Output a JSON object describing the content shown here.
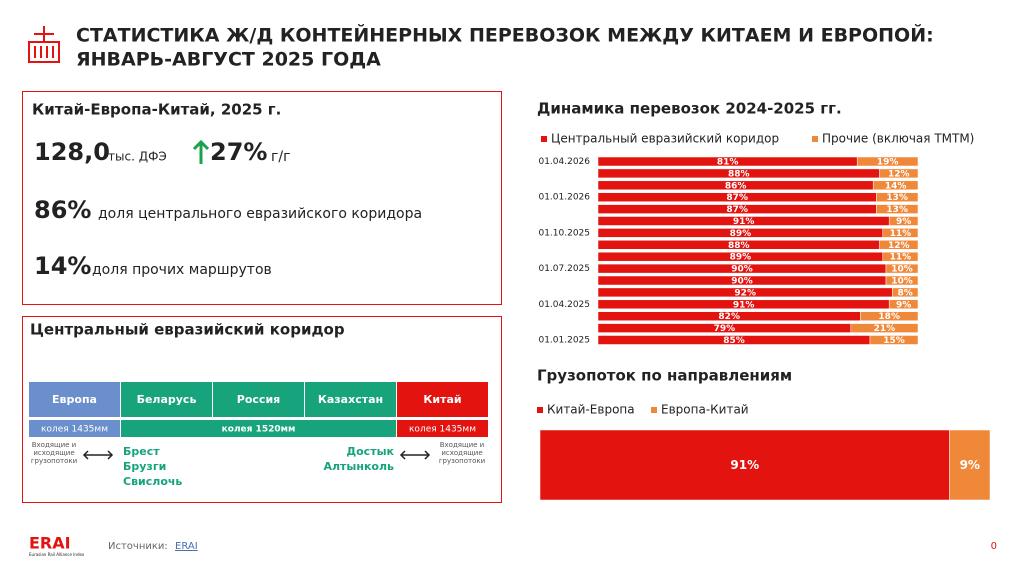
{
  "header": {
    "title_line1": "СТАТИСТИКА Ж/Д КОНТЕЙНЕРНЫХ ПЕРЕВОЗОК МЕЖДУ КИТАЕМ И ЕВРОПОЙ:",
    "title_line2": "ЯНВАРЬ-АВГУСТ 2025 ГОДА"
  },
  "summary": {
    "title": "Китай-Европа-Китай,  2025 г.",
    "volume": "128,0",
    "volume_unit": "тыс. ДФЭ",
    "growth": "27%",
    "growth_unit": "г/г",
    "share_central": "86%",
    "share_central_text": "доля центрального евразийского коридора",
    "share_other": "14%",
    "share_other_text": "доля прочих маршрутов"
  },
  "corridor": {
    "title": "Центральный евразийский коридор",
    "countries": [
      "Европа",
      "Беларусь",
      "Россия",
      "Казахстан",
      "Китай"
    ],
    "gauges": [
      "колея 1435мм",
      "колея 1520мм",
      "колея 1435мм"
    ],
    "flows_left": "Входящие и исходящие грузопотоки",
    "flows_right": "Входящие и исходящие грузопотоки",
    "crossings_west": [
      "Брест",
      "Брузги",
      "Свислочь"
    ],
    "crossings_east": [
      "Достык",
      "Алтынколь"
    ]
  },
  "chart_data": [
    {
      "type": "stacked-barh",
      "title": "Динамика перевозок 2024-2025  гг.",
      "categories": [
        "01.04.2026",
        null,
        null,
        "01.01.2026",
        null,
        null,
        "01.10.2025",
        null,
        null,
        "01.07.2025",
        null,
        null,
        "01.04.2025",
        null,
        null,
        "01.01.2025"
      ],
      "series": [
        {
          "name": "Центральный евразийский коридор",
          "color": "#e3140f",
          "values": [
            81,
            88,
            86,
            87,
            87,
            91,
            89,
            88,
            89,
            90,
            90,
            92,
            91,
            82,
            79,
            85
          ],
          "value_labels": [
            "81%",
            "88%",
            "86%",
            "87%",
            "87%",
            "91%",
            "89%",
            "88%",
            "89%",
            "90%",
            "90%",
            "92%",
            "91%",
            "82%",
            "79%",
            "85%"
          ]
        },
        {
          "name": "Прочие (включая ТМТМ)",
          "color": "#f0883a",
          "values": [
            19,
            12,
            14,
            13,
            13,
            9,
            11,
            12,
            11,
            10,
            10,
            8,
            9,
            18,
            21,
            15
          ],
          "value_labels": [
            "19%",
            "12%",
            "14%",
            "13%",
            "13%",
            "9%",
            "11%",
            "12%",
            "11%",
            "10%",
            "10%",
            "8%",
            "9%",
            "18%",
            "21%",
            "15%"
          ]
        }
      ]
    },
    {
      "type": "stacked-barh",
      "title": "Грузопоток по направлениям",
      "categories": [
        null
      ],
      "series": [
        {
          "name": "Китай-Европа",
          "color": "#e3140f",
          "values": [
            91
          ],
          "value_labels": [
            "91%"
          ]
        },
        {
          "name": "Европа-Китай",
          "color": "#f0883a",
          "values": [
            9
          ],
          "value_labels": [
            "9%"
          ]
        }
      ]
    }
  ],
  "footer": {
    "logo": "ERAI",
    "logo_sub": "Eurasian Rail Alliance Index",
    "source_label": "Источники:",
    "source_link": "ERAI",
    "page": "0"
  }
}
